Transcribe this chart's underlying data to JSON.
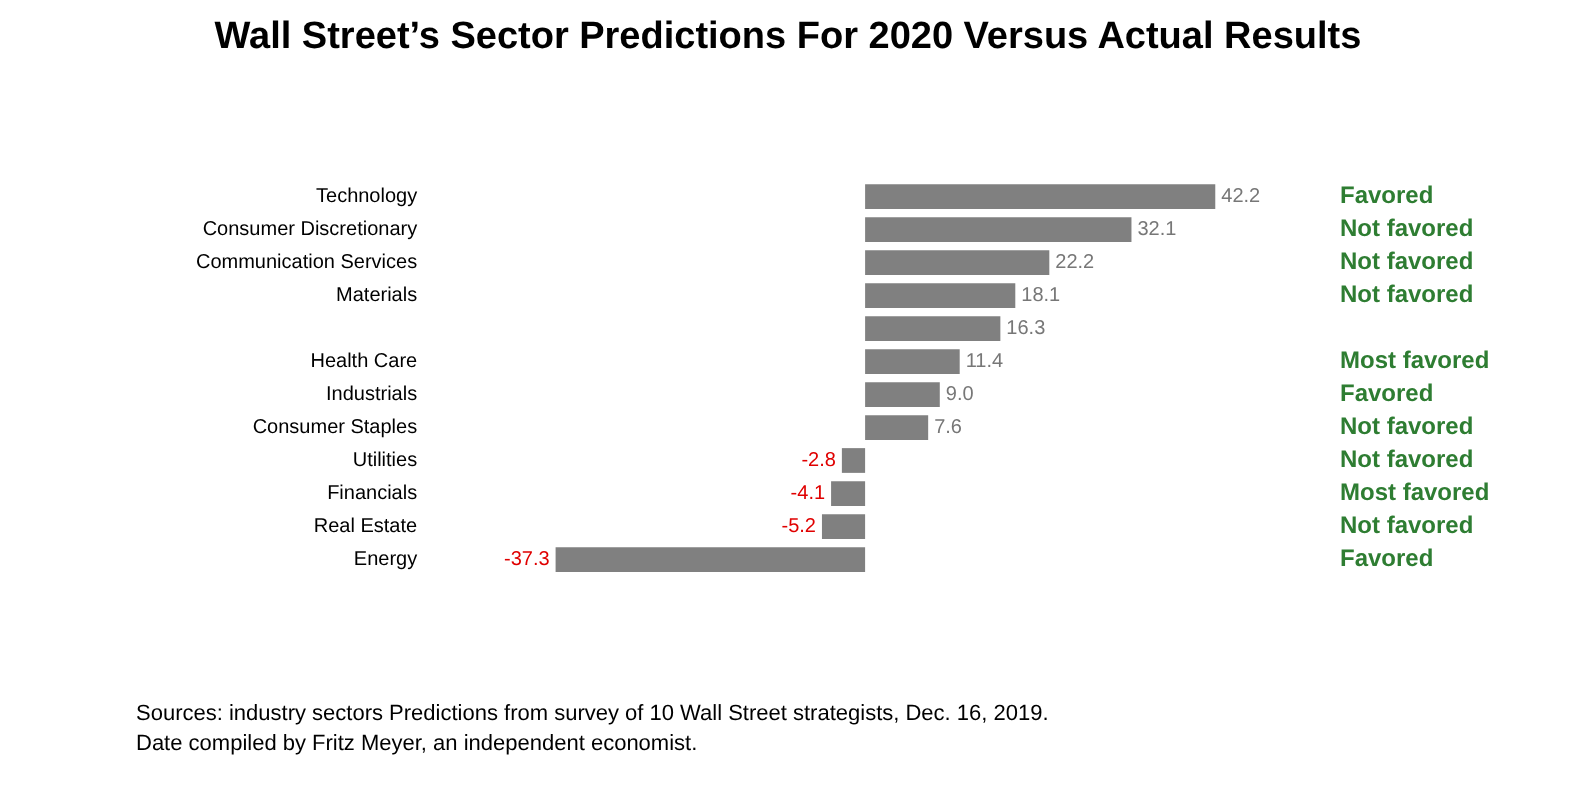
{
  "chart_data": {
    "type": "bar",
    "orientation": "horizontal",
    "title": "Wall Street’s Sector Predictions For 2020 Versus Actual Results",
    "categories": [
      "Technology",
      "Consumer Discretionary",
      "Communication Services",
      "Materials",
      null,
      "Health Care",
      "Industrials",
      "Consumer Staples",
      "Utilities",
      "Financials",
      "Real Estate",
      "Energy"
    ],
    "values": [
      42.2,
      32.1,
      22.2,
      18.1,
      16.3,
      11.4,
      9.0,
      7.6,
      -2.8,
      -4.1,
      -5.2,
      -37.3
    ],
    "value_labels": [
      "42.2",
      "32.1",
      "22.2",
      "18.1",
      "16.3",
      "11.4",
      "9.0",
      "7.6",
      "-2.8",
      "-4.1",
      "-5.2",
      "-37.3"
    ],
    "color": "#808080",
    "grid": false,
    "legend": false,
    "tick_labels": "y",
    "y2_categories": [
      "Favored",
      "Not favored",
      "Not favored",
      "Not favored",
      null,
      "Most favored",
      "Favored",
      "Not favored",
      "Not favored",
      "Most favored",
      "Not favored",
      "Favored"
    ],
    "annotations": [
      "Sources: industry sectors Predictions from survey of 10 Wall Street strategists, Dec. 16, 2019.",
      "Date compiled by Fritz Meyer, an independent economist."
    ]
  }
}
